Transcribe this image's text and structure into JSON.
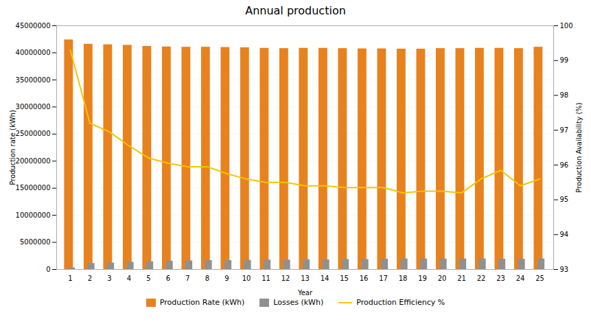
{
  "chart_data": {
    "type": "bar",
    "title": "Annual production",
    "xlabel": "Year",
    "ylabel": "Production rate (kWh)",
    "y2label": "Production Availability (%)",
    "x": [
      1,
      2,
      3,
      4,
      5,
      6,
      7,
      8,
      9,
      10,
      11,
      12,
      13,
      14,
      15,
      16,
      17,
      18,
      19,
      20,
      21,
      22,
      23,
      24,
      25
    ],
    "xlim": [
      0.3,
      25.7
    ],
    "xticks": [
      1,
      2,
      3,
      4,
      5,
      6,
      7,
      8,
      9,
      10,
      11,
      12,
      13,
      14,
      15,
      16,
      17,
      18,
      19,
      20,
      21,
      22,
      23,
      24,
      25
    ],
    "series": [
      {
        "name": "Production Rate (kWh)",
        "type": "bar",
        "color": "#E8821E",
        "values": [
          42400000,
          41600000,
          41500000,
          41400000,
          41200000,
          41100000,
          41050000,
          41050000,
          41000000,
          40950000,
          40850000,
          40800000,
          40850000,
          40850000,
          40800000,
          40750000,
          40750000,
          40700000,
          40700000,
          40800000,
          40800000,
          40850000,
          40850000,
          40800000,
          41050000
        ]
      },
      {
        "name": "Losses (kWh)",
        "type": "bar",
        "color": "#909090",
        "values": [
          300000,
          1100000,
          1200000,
          1350000,
          1450000,
          1550000,
          1600000,
          1650000,
          1650000,
          1700000,
          1750000,
          1750000,
          1800000,
          1800000,
          1850000,
          1850000,
          1900000,
          1950000,
          1950000,
          1950000,
          1950000,
          1950000,
          1900000,
          1900000,
          1950000
        ]
      },
      {
        "name": "Production Efficiency %",
        "type": "line",
        "axis": "y2",
        "color": "#F5C400",
        "values": [
          99.3,
          97.2,
          96.95,
          96.55,
          96.2,
          96.05,
          95.95,
          95.95,
          95.75,
          95.6,
          95.5,
          95.5,
          95.4,
          95.4,
          95.35,
          95.35,
          95.35,
          95.2,
          95.25,
          95.25,
          95.2,
          95.6,
          95.85,
          95.4,
          95.6
        ]
      }
    ],
    "ylim": [
      0,
      45000000
    ],
    "yticks": [
      0,
      5000000,
      10000000,
      15000000,
      20000000,
      25000000,
      30000000,
      35000000,
      40000000,
      45000000
    ],
    "y2lim": [
      93,
      100
    ],
    "y2ticks": [
      93,
      94,
      95,
      96,
      97,
      98,
      99,
      100
    ],
    "grid": true,
    "legend": "bottom"
  }
}
